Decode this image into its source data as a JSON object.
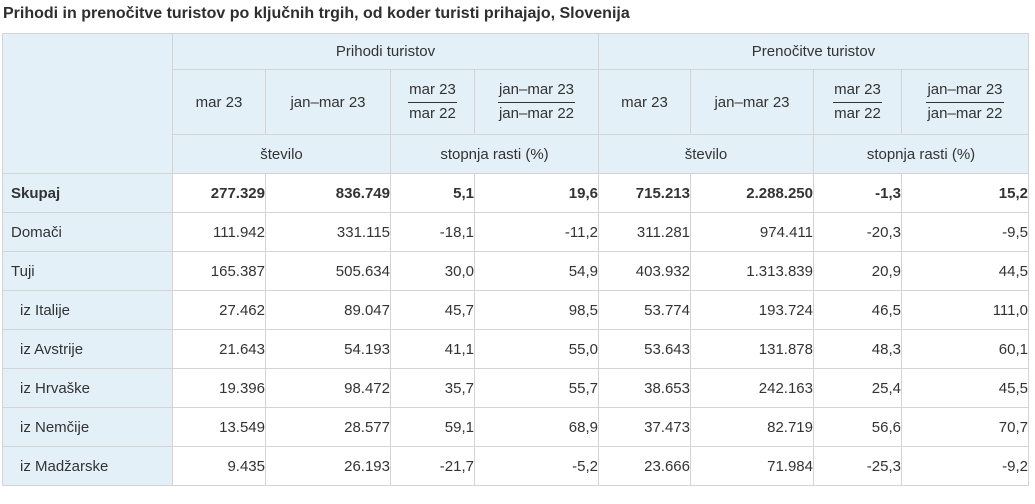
{
  "title": "Prihodi in prenočitve turistov po ključnih trgih, od koder turisti prihajajo, Slovenija",
  "table": {
    "groups": [
      {
        "label": "Prihodi turistov"
      },
      {
        "label": "Prenočitve turistov"
      }
    ],
    "period_headers": {
      "month": "mar 23",
      "range": "jan–mar 23",
      "ratio_month": {
        "num": "mar 23",
        "den": "mar 22"
      },
      "ratio_range": {
        "num": "jan–mar 23",
        "den": "jan–mar 22"
      }
    },
    "unit_headers": {
      "count": "število",
      "growth": "stopnja rasti (%)"
    },
    "rows": [
      {
        "label": "Skupaj",
        "bold": true,
        "indent": false,
        "values": [
          "277.329",
          "836.749",
          "5,1",
          "19,6",
          "715.213",
          "2.288.250",
          "-1,3",
          "15,2"
        ]
      },
      {
        "label": "Domači",
        "bold": false,
        "indent": false,
        "values": [
          "111.942",
          "331.115",
          "-18,1",
          "-11,2",
          "311.281",
          "974.411",
          "-20,3",
          "-9,5"
        ]
      },
      {
        "label": "Tuji",
        "bold": false,
        "indent": false,
        "values": [
          "165.387",
          "505.634",
          "30,0",
          "54,9",
          "403.932",
          "1.313.839",
          "20,9",
          "44,5"
        ]
      },
      {
        "label": "iz Italije",
        "bold": false,
        "indent": true,
        "values": [
          "27.462",
          "89.047",
          "45,7",
          "98,5",
          "53.774",
          "193.724",
          "46,5",
          "111,0"
        ]
      },
      {
        "label": "iz Avstrije",
        "bold": false,
        "indent": true,
        "values": [
          "21.643",
          "54.193",
          "41,1",
          "55,0",
          "53.643",
          "131.878",
          "48,3",
          "60,1"
        ]
      },
      {
        "label": "iz Hrvaške",
        "bold": false,
        "indent": true,
        "values": [
          "19.396",
          "98.472",
          "35,7",
          "55,7",
          "38.653",
          "242.163",
          "25,4",
          "45,5"
        ]
      },
      {
        "label": "iz Nemčije",
        "bold": false,
        "indent": true,
        "values": [
          "13.549",
          "28.577",
          "59,1",
          "68,9",
          "37.473",
          "82.719",
          "56,6",
          "70,7"
        ]
      },
      {
        "label": "iz Madžarske",
        "bold": false,
        "indent": true,
        "values": [
          "9.435",
          "26.193",
          "-21,7",
          "-5,2",
          "23.666",
          "71.984",
          "-25,3",
          "-9,2"
        ]
      }
    ]
  },
  "colors": {
    "header_bg": "#e4f0f8",
    "border": "#d4d4d4",
    "text": "#333333"
  }
}
